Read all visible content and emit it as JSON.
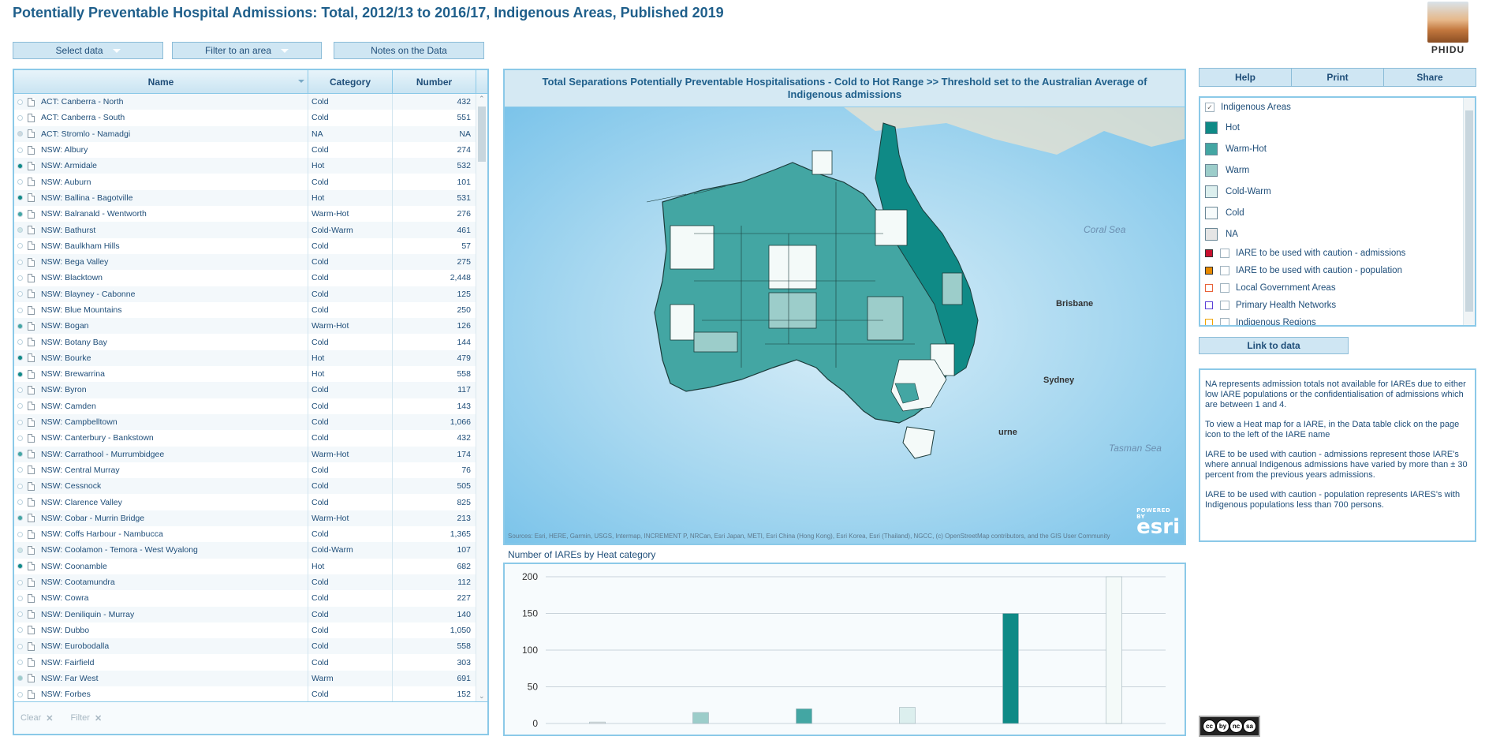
{
  "header": {
    "title": "Potentially Preventable Hospital Admissions: Total, 2012/13 to 2016/17, Indigenous Areas, Published 2019",
    "logo_text": "PHIDU"
  },
  "controls": {
    "select_data": "Select data",
    "filter_area": "Filter to an area",
    "notes": "Notes on the Data"
  },
  "table": {
    "columns": [
      "Name",
      "Category",
      "Number"
    ],
    "rows": [
      {
        "name": "ACT: Canberra - North",
        "category": "Cold",
        "number": "432",
        "dot": "empty"
      },
      {
        "name": "ACT: Canberra - South",
        "category": "Cold",
        "number": "551",
        "dot": "empty"
      },
      {
        "name": "ACT: Stromlo - Namadgi",
        "category": "NA",
        "number": "NA",
        "dot": "grey"
      },
      {
        "name": "NSW: Albury",
        "category": "Cold",
        "number": "274",
        "dot": "empty"
      },
      {
        "name": "NSW: Armidale",
        "category": "Hot",
        "number": "532",
        "dot": "hot"
      },
      {
        "name": "NSW: Auburn",
        "category": "Cold",
        "number": "101",
        "dot": "empty"
      },
      {
        "name": "NSW: Ballina - Bagotville",
        "category": "Hot",
        "number": "531",
        "dot": "hot"
      },
      {
        "name": "NSW: Balranald - Wentworth",
        "category": "Warm-Hot",
        "number": "276",
        "dot": "warmhot"
      },
      {
        "name": "NSW: Bathurst",
        "category": "Cold-Warm",
        "number": "461",
        "dot": "coldwarm"
      },
      {
        "name": "NSW: Baulkham Hills",
        "category": "Cold",
        "number": "57",
        "dot": "empty"
      },
      {
        "name": "NSW: Bega Valley",
        "category": "Cold",
        "number": "275",
        "dot": "empty"
      },
      {
        "name": "NSW: Blacktown",
        "category": "Cold",
        "number": "2,448",
        "dot": "empty"
      },
      {
        "name": "NSW: Blayney - Cabonne",
        "category": "Cold",
        "number": "125",
        "dot": "empty"
      },
      {
        "name": "NSW: Blue Mountains",
        "category": "Cold",
        "number": "250",
        "dot": "empty"
      },
      {
        "name": "NSW: Bogan",
        "category": "Warm-Hot",
        "number": "126",
        "dot": "warmhot"
      },
      {
        "name": "NSW: Botany Bay",
        "category": "Cold",
        "number": "144",
        "dot": "empty"
      },
      {
        "name": "NSW: Bourke",
        "category": "Hot",
        "number": "479",
        "dot": "hot"
      },
      {
        "name": "NSW: Brewarrina",
        "category": "Hot",
        "number": "558",
        "dot": "hot"
      },
      {
        "name": "NSW: Byron",
        "category": "Cold",
        "number": "117",
        "dot": "empty"
      },
      {
        "name": "NSW: Camden",
        "category": "Cold",
        "number": "143",
        "dot": "empty"
      },
      {
        "name": "NSW: Campbelltown",
        "category": "Cold",
        "number": "1,066",
        "dot": "empty"
      },
      {
        "name": "NSW: Canterbury - Bankstown",
        "category": "Cold",
        "number": "432",
        "dot": "empty"
      },
      {
        "name": "NSW: Carrathool - Murrumbidgee",
        "category": "Warm-Hot",
        "number": "174",
        "dot": "warmhot"
      },
      {
        "name": "NSW: Central Murray",
        "category": "Cold",
        "number": "76",
        "dot": "empty"
      },
      {
        "name": "NSW: Cessnock",
        "category": "Cold",
        "number": "505",
        "dot": "empty"
      },
      {
        "name": "NSW: Clarence Valley",
        "category": "Cold",
        "number": "825",
        "dot": "empty"
      },
      {
        "name": "NSW: Cobar - Murrin Bridge",
        "category": "Warm-Hot",
        "number": "213",
        "dot": "warmhot"
      },
      {
        "name": "NSW: Coffs Harbour - Nambucca",
        "category": "Cold",
        "number": "1,365",
        "dot": "empty"
      },
      {
        "name": "NSW: Coolamon - Temora - West Wyalong",
        "category": "Cold-Warm",
        "number": "107",
        "dot": "coldwarm"
      },
      {
        "name": "NSW: Coonamble",
        "category": "Hot",
        "number": "682",
        "dot": "hot"
      },
      {
        "name": "NSW: Cootamundra",
        "category": "Cold",
        "number": "112",
        "dot": "empty"
      },
      {
        "name": "NSW: Cowra",
        "category": "Cold",
        "number": "227",
        "dot": "empty"
      },
      {
        "name": "NSW: Deniliquin - Murray",
        "category": "Cold",
        "number": "140",
        "dot": "empty"
      },
      {
        "name": "NSW: Dubbo",
        "category": "Cold",
        "number": "1,050",
        "dot": "empty"
      },
      {
        "name": "NSW: Eurobodalla",
        "category": "Cold",
        "number": "558",
        "dot": "empty"
      },
      {
        "name": "NSW: Fairfield",
        "category": "Cold",
        "number": "303",
        "dot": "empty"
      },
      {
        "name": "NSW: Far West",
        "category": "Warm",
        "number": "691",
        "dot": "warm"
      },
      {
        "name": "NSW: Forbes",
        "category": "Cold",
        "number": "152",
        "dot": "empty"
      }
    ],
    "footer": {
      "clear": "Clear",
      "filter": "Filter"
    }
  },
  "map": {
    "title": "Total Separations Potentially Preventable Hospitalisations - Cold to Hot Range >>  Threshold set to the Australian Average of Indigenous admissions",
    "labels": {
      "coral_sea": "Coral Sea",
      "tasman_sea": "Tasman Sea",
      "brisbane": "Brisbane",
      "sydney": "Sydney",
      "melbourne": "urne"
    },
    "attribution": "Sources: Esri, HERE, Garmin, USGS, Intermap, INCREMENT P, NRCan, Esri Japan, METI, Esri China (Hong Kong), Esri Korea, Esri (Thailand), NGCC, (c) OpenStreetMap contributors, and the GIS User Community",
    "esri_powered": "POWERED BY",
    "esri": "esri"
  },
  "toolbar": {
    "help": "Help",
    "print": "Print",
    "share": "Share"
  },
  "legend": {
    "layer_title": "Indigenous Areas",
    "categories": [
      {
        "label": "Hot",
        "color": "#0f8a86"
      },
      {
        "label": "Warm-Hot",
        "color": "#43a6a3"
      },
      {
        "label": "Warm",
        "color": "#9ccdca"
      },
      {
        "label": "Cold-Warm",
        "color": "#dcefee"
      },
      {
        "label": "Cold",
        "color": "#f7fbfb"
      },
      {
        "label": "NA",
        "color": "#e5e5e5"
      }
    ],
    "overlays": [
      {
        "label": "IARE to be used with caution - admissions",
        "color": "#c8102e",
        "style": "fill"
      },
      {
        "label": "IARE to be used with caution - population",
        "color": "#e88a00",
        "style": "fill"
      },
      {
        "label": "Local Government Areas",
        "color": "#e8633a",
        "style": "outline"
      },
      {
        "label": "Primary Health Networks",
        "color": "#5b3fd6",
        "style": "outline"
      },
      {
        "label": "Indigenous Regions",
        "color": "#f0a500",
        "style": "outline"
      }
    ]
  },
  "link_to_data": "Link to data",
  "notes_text": [
    "NA represents admission totals not available for IAREs due to either low IARE populations or the confidentialisation of admissions which are between 1 and 4.",
    "To view a Heat map for a IARE, in the Data table click on the page icon to the left of the IARE name",
    "IARE to be used with caution - admissions represent those IARE's where annual Indigenous admissions have varied by more than ± 30 percent from the previous years admissions.",
    "IARE to be used with caution - population represents IARES's with Indigenous populations less than 700 persons."
  ],
  "license": [
    "cc",
    "by",
    "nc",
    "sa"
  ],
  "chart_caption": "Number of IAREs by Heat category",
  "chart_data": {
    "type": "bar",
    "categories": [
      "NA",
      "Warm",
      "Warm-Hot",
      "Cold-Warm",
      "Hot",
      "Cold"
    ],
    "values": [
      2,
      15,
      20,
      22,
      150,
      200
    ],
    "colors": [
      "#e5e5e5",
      "#9ccdca",
      "#43a6a3",
      "#dcefee",
      "#0f8a86",
      "#f4faf9"
    ],
    "yticks": [
      0,
      50,
      100,
      150,
      200
    ],
    "ylim": [
      0,
      200
    ],
    "grid": true,
    "title": "Number of IAREs by Heat category"
  }
}
